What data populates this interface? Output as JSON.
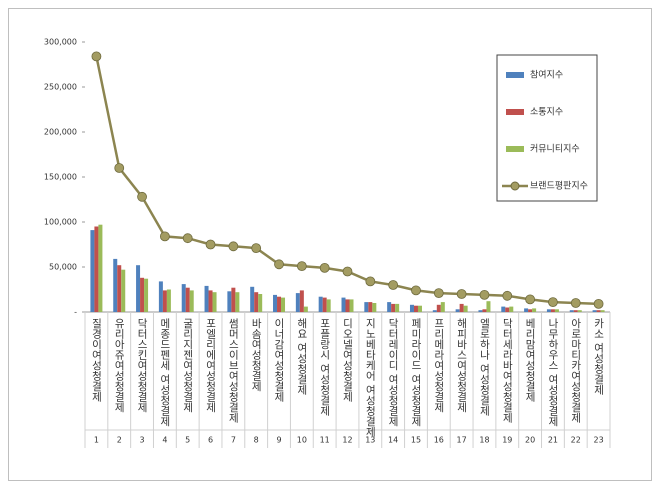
{
  "chart_data": {
    "type": "bar_line",
    "categories": [
      "질경이여성청결제",
      "유리아쥬여성청결제",
      "닥터스킨여성청결제",
      "메종드펜세 여성청결제",
      "굴리지젠여성청결제",
      "포엘리에여성청결제",
      "썸머스이브여성청결제",
      "바솜여성청결제",
      "이너감여성청결제",
      "해요 여성청결제",
      "포플랑시 여성청결제",
      "디오넬여성청결제",
      "지노베타케어 여성청결제",
      "닥터레이디 여성청결제",
      "페미라이드 여성청결제",
      "프리메라여성청결제",
      "해피바스여성청결제",
      "엘로하나 여성청결제",
      "닥터세라바여성청결제",
      "베리맘여성청결제",
      "나무하우스 여성청결제",
      "아로마티카여성청결제",
      "카소 여성청결제"
    ],
    "ranks": [
      1,
      2,
      3,
      4,
      5,
      6,
      7,
      8,
      9,
      10,
      11,
      12,
      13,
      14,
      15,
      16,
      17,
      18,
      19,
      20,
      21,
      22,
      23
    ],
    "series": [
      {
        "name": "참여지수",
        "kind": "bar",
        "color": "#4f81bd",
        "values": [
          91000,
          59000,
          52000,
          34000,
          31000,
          29000,
          23000,
          28000,
          19000,
          21000,
          17000,
          16000,
          11000,
          11000,
          8000,
          2000,
          3000,
          2000,
          6000,
          4000,
          3000,
          2000,
          2000
        ]
      },
      {
        "name": "소통지수",
        "kind": "bar",
        "color": "#c0504d",
        "values": [
          95000,
          52000,
          38000,
          24000,
          27000,
          24000,
          27000,
          22000,
          17000,
          24000,
          16000,
          14000,
          11000,
          9000,
          7000,
          8000,
          9000,
          3000,
          5000,
          3000,
          3000,
          2000,
          2000
        ]
      },
      {
        "name": "커뮤니티지수",
        "kind": "bar",
        "color": "#9bbb59",
        "values": [
          97000,
          47000,
          37000,
          25000,
          24000,
          22000,
          22000,
          20000,
          16000,
          6000,
          14000,
          14000,
          10000,
          9000,
          7000,
          11000,
          7000,
          12000,
          6000,
          4000,
          3000,
          2000,
          2000
        ]
      },
      {
        "name": "브랜드평판지수",
        "kind": "line",
        "color": "#8c8550",
        "values": [
          284000,
          160000,
          128000,
          84000,
          82000,
          75000,
          73000,
          71000,
          53000,
          51000,
          49000,
          45000,
          34000,
          30000,
          24000,
          21000,
          20000,
          19000,
          18000,
          14000,
          11000,
          10000,
          9000
        ]
      }
    ],
    "ylim": [
      0,
      300000
    ],
    "yticks": [
      {
        "value": 0,
        "label": "-"
      },
      {
        "value": 50000,
        "label": "50,000"
      },
      {
        "value": 100000,
        "label": "100,000"
      },
      {
        "value": 150000,
        "label": "150,000"
      },
      {
        "value": 200000,
        "label": "200,000"
      },
      {
        "value": 250000,
        "label": "250,000"
      },
      {
        "value": 300000,
        "label": "300,000"
      }
    ],
    "legend": "upper right"
  }
}
